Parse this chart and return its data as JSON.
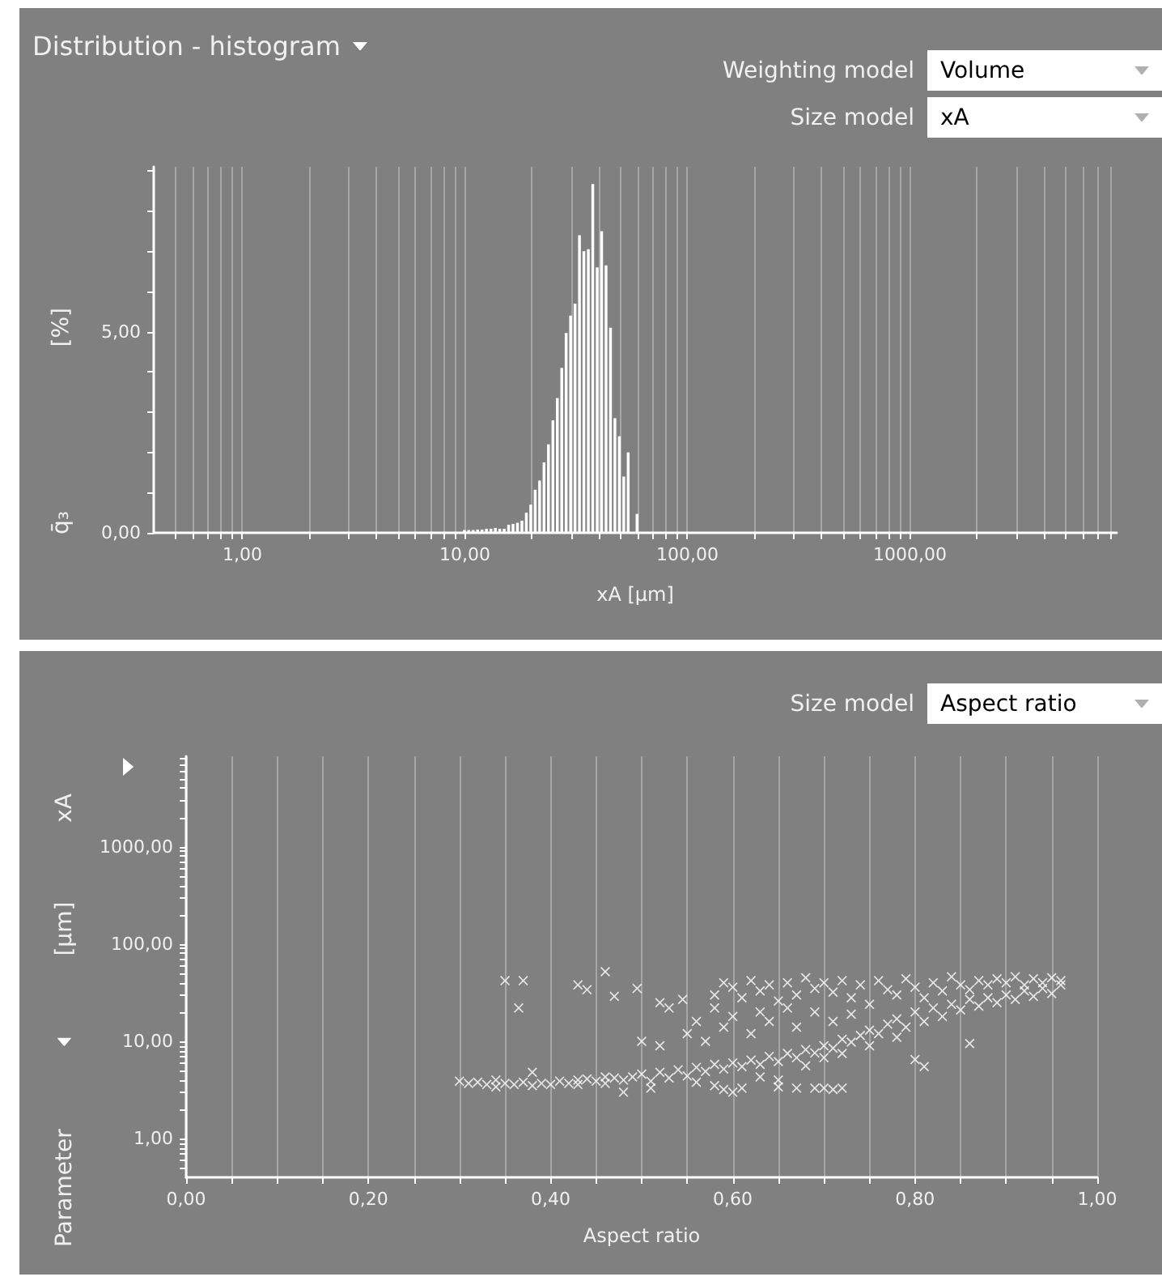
{
  "chart_data": [
    {
      "type": "histogram",
      "title": "Distribution - histogram",
      "xlabel": "xA [µm]",
      "ylabel": "q̄₃ [%]",
      "annotations": [
        "Weighting model",
        "Volume",
        "Size model",
        "xA"
      ],
      "log": "x",
      "grid": "x",
      "color": "#ffffff",
      "bins": [
        7.8,
        8.17,
        8.55,
        8.95,
        9.37,
        9.81,
        10.27,
        10.75,
        11.25,
        11.78,
        12.33,
        12.91,
        13.52,
        14.15,
        14.81,
        15.51,
        16.23,
        16.99,
        17.79,
        18.63,
        19.5,
        20.41,
        21.37,
        22.37,
        23.42,
        24.52,
        25.67,
        26.87,
        28.13,
        29.45,
        30.83,
        32.28,
        33.79,
        35.38,
        37.04,
        38.77,
        40.59,
        42.5,
        44.49,
        46.58,
        48.76,
        51.05,
        53.44,
        55.95,
        58.57,
        61.32
      ],
      "values": [
        null,
        null,
        null,
        null,
        null,
        0.07,
        0.07,
        0.07,
        0.08,
        0.08,
        0.1,
        0.1,
        0.12,
        0.1,
        0.1,
        0.2,
        0.22,
        0.25,
        0.3,
        0.5,
        0.7,
        1.07,
        1.3,
        1.75,
        2.2,
        2.8,
        3.35,
        4.1,
        4.97,
        5.4,
        5.7,
        7.4,
        7.0,
        7.05,
        8.67,
        6.6,
        7.5,
        6.65,
        5.1,
        2.85,
        2.4,
        1.4,
        2.0,
        0,
        0.47
      ],
      "xlim": [
        0.4,
        8500
      ],
      "xticks": [
        {
          "value": 0.5,
          "label": null
        },
        {
          "value": 0.6,
          "label": null
        },
        {
          "value": 0.7,
          "label": null
        },
        {
          "value": 0.8,
          "label": null
        },
        {
          "value": 0.9,
          "label": null
        },
        {
          "value": 1,
          "label": "1,00"
        },
        {
          "value": 2,
          "label": null
        },
        {
          "value": 3,
          "label": null
        },
        {
          "value": 4,
          "label": null
        },
        {
          "value": 5,
          "label": null
        },
        {
          "value": 6,
          "label": null
        },
        {
          "value": 7,
          "label": null
        },
        {
          "value": 8,
          "label": null
        },
        {
          "value": 9,
          "label": null
        },
        {
          "value": 10,
          "label": "10,00"
        },
        {
          "value": 20,
          "label": null
        },
        {
          "value": 30,
          "label": null
        },
        {
          "value": 40,
          "label": null
        },
        {
          "value": 50,
          "label": null
        },
        {
          "value": 60,
          "label": null
        },
        {
          "value": 70,
          "label": null
        },
        {
          "value": 80,
          "label": null
        },
        {
          "value": 90,
          "label": null
        },
        {
          "value": 100,
          "label": "100,00"
        },
        {
          "value": 200,
          "label": null
        },
        {
          "value": 300,
          "label": null
        },
        {
          "value": 400,
          "label": null
        },
        {
          "value": 500,
          "label": null
        },
        {
          "value": 600,
          "label": null
        },
        {
          "value": 700,
          "label": null
        },
        {
          "value": 800,
          "label": null
        },
        {
          "value": 900,
          "label": null
        },
        {
          "value": 1000,
          "label": "1000,00"
        },
        {
          "value": 2000,
          "label": null
        },
        {
          "value": 3000,
          "label": null
        },
        {
          "value": 4000,
          "label": null
        },
        {
          "value": 5000,
          "label": null
        },
        {
          "value": 6000,
          "label": null
        },
        {
          "value": 7000,
          "label": null
        },
        {
          "value": 8000,
          "label": null
        }
      ],
      "ylim": [
        0,
        9.1
      ],
      "yticks": [
        {
          "value": 0,
          "label": "0,00"
        },
        {
          "value": 1,
          "label": null
        },
        {
          "value": 2,
          "label": null
        },
        {
          "value": 3,
          "label": null
        },
        {
          "value": 4,
          "label": null
        },
        {
          "value": 5,
          "label": "5,00"
        },
        {
          "value": 6,
          "label": null
        },
        {
          "value": 7,
          "label": null
        },
        {
          "value": 8,
          "label": null
        },
        {
          "value": 9,
          "label": null
        }
      ]
    },
    {
      "type": "scatter",
      "xlabel": "Aspect ratio",
      "ylabel": "Parameter [µm] xA",
      "annotations": [
        "Size model",
        "Aspect ratio"
      ],
      "log": "y",
      "grid": "x",
      "marker": "cross",
      "series": [
        {
          "color": "#ffffff",
          "x": [
            0.3,
            0.31,
            0.32,
            0.33,
            0.34,
            0.34,
            0.35,
            0.36,
            0.37,
            0.38,
            0.38,
            0.39,
            0.4,
            0.41,
            0.42,
            0.43,
            0.43,
            0.44,
            0.45,
            0.46,
            0.46,
            0.47,
            0.48,
            0.48,
            0.49,
            0.5,
            0.51,
            0.51,
            0.52,
            0.53,
            0.54,
            0.55,
            0.56,
            0.56,
            0.57,
            0.58,
            0.58,
            0.59,
            0.59,
            0.6,
            0.6,
            0.61,
            0.61,
            0.62,
            0.63,
            0.63,
            0.64,
            0.65,
            0.65,
            0.66,
            0.67,
            0.68,
            0.68,
            0.69,
            0.7,
            0.7,
            0.71,
            0.72,
            0.72,
            0.73,
            0.65,
            0.67,
            0.69,
            0.7,
            0.71,
            0.72,
            0.74,
            0.75,
            0.75,
            0.76,
            0.77,
            0.78,
            0.78,
            0.79,
            0.8,
            0.8,
            0.81,
            0.81,
            0.82,
            0.83,
            0.84,
            0.85,
            0.86,
            0.86,
            0.87,
            0.88,
            0.89,
            0.9,
            0.91,
            0.92,
            0.93,
            0.94,
            0.95,
            0.96,
            0.58,
            0.59,
            0.6,
            0.61,
            0.62,
            0.63,
            0.64,
            0.65,
            0.66,
            0.67,
            0.68,
            0.69,
            0.7,
            0.71,
            0.72,
            0.73,
            0.74,
            0.75,
            0.76,
            0.77,
            0.78,
            0.79,
            0.8,
            0.81,
            0.82,
            0.83,
            0.84,
            0.85,
            0.86,
            0.87,
            0.88,
            0.89,
            0.9,
            0.91,
            0.92,
            0.93,
            0.94,
            0.95,
            0.96,
            0.55,
            0.56,
            0.57,
            0.58,
            0.59,
            0.6,
            0.62,
            0.63,
            0.64,
            0.66,
            0.67,
            0.69,
            0.71,
            0.73,
            0.35,
            0.37,
            0.365,
            0.43,
            0.44,
            0.46,
            0.47,
            0.495,
            0.52,
            0.53,
            0.545,
            0.5,
            0.52
          ],
          "values": [
            3.9,
            3.7,
            3.8,
            3.6,
            3.4,
            4.0,
            3.7,
            3.6,
            3.8,
            3.5,
            4.8,
            3.7,
            3.6,
            3.9,
            3.7,
            4.0,
            3.6,
            4.1,
            3.9,
            4.3,
            3.7,
            4.2,
            4.0,
            3.0,
            4.3,
            4.6,
            3.9,
            3.3,
            4.8,
            4.2,
            5.1,
            4.4,
            5.4,
            3.8,
            4.9,
            5.8,
            3.5,
            5.2,
            3.2,
            6.0,
            3.0,
            5.5,
            3.3,
            6.4,
            5.8,
            4.3,
            7.0,
            6.2,
            4.0,
            7.5,
            6.8,
            8.2,
            5.6,
            7.6,
            9.0,
            6.8,
            8.5,
            10.5,
            7.5,
            9.8,
            3.4,
            3.3,
            3.3,
            3.3,
            3.2,
            3.3,
            11.5,
            9.0,
            13,
            12,
            15,
            11,
            17,
            14,
            20,
            6.5,
            16,
            5.5,
            22,
            18,
            24,
            21,
            27,
            9.5,
            23,
            28,
            25,
            30,
            27,
            33,
            29,
            35,
            31,
            38,
            30,
            40,
            36,
            28,
            42,
            33,
            38,
            26,
            40,
            30,
            45,
            35,
            40,
            32,
            42,
            28,
            38,
            24,
            42,
            34,
            30,
            44,
            36,
            28,
            40,
            33,
            46,
            38,
            34,
            42,
            38,
            44,
            40,
            46,
            38,
            44,
            40,
            45,
            42,
            12,
            16,
            10,
            22,
            14,
            18,
            12,
            20,
            16,
            22,
            14,
            20,
            16,
            19,
            42,
            42,
            22,
            38,
            34,
            52,
            29,
            35,
            25,
            22,
            27,
            10,
            9
          ]
        }
      ],
      "xlim": [
        0,
        1
      ],
      "xticks": [
        {
          "value": 0,
          "label": "0,00"
        },
        {
          "value": 0.05,
          "label": null
        },
        {
          "value": 0.1,
          "label": null
        },
        {
          "value": 0.15,
          "label": null
        },
        {
          "value": 0.2,
          "label": "0,20"
        },
        {
          "value": 0.25,
          "label": null
        },
        {
          "value": 0.3,
          "label": null
        },
        {
          "value": 0.35,
          "label": null
        },
        {
          "value": 0.4,
          "label": "0,40"
        },
        {
          "value": 0.45,
          "label": null
        },
        {
          "value": 0.5,
          "label": null
        },
        {
          "value": 0.55,
          "label": null
        },
        {
          "value": 0.6,
          "label": "0,60"
        },
        {
          "value": 0.65,
          "label": null
        },
        {
          "value": 0.7,
          "label": null
        },
        {
          "value": 0.75,
          "label": null
        },
        {
          "value": 0.8,
          "label": "0,80"
        },
        {
          "value": 0.85,
          "label": null
        },
        {
          "value": 0.9,
          "label": null
        },
        {
          "value": 0.95,
          "label": null
        },
        {
          "value": 1,
          "label": "1,00"
        }
      ],
      "ylim": [
        0.4,
        8500
      ],
      "yticks": [
        {
          "value": 0.5,
          "label": null
        },
        {
          "value": 0.6,
          "label": null
        },
        {
          "value": 0.7,
          "label": null
        },
        {
          "value": 0.8,
          "label": null
        },
        {
          "value": 0.9,
          "label": null
        },
        {
          "value": 1,
          "label": "1,00"
        },
        {
          "value": 2,
          "label": null
        },
        {
          "value": 3,
          "label": null
        },
        {
          "value": 4,
          "label": null
        },
        {
          "value": 5,
          "label": null
        },
        {
          "value": 6,
          "label": null
        },
        {
          "value": 7,
          "label": null
        },
        {
          "value": 8,
          "label": null
        },
        {
          "value": 9,
          "label": null
        },
        {
          "value": 10,
          "label": "10,00"
        },
        {
          "value": 20,
          "label": null
        },
        {
          "value": 30,
          "label": null
        },
        {
          "value": 40,
          "label": null
        },
        {
          "value": 50,
          "label": null
        },
        {
          "value": 60,
          "label": null
        },
        {
          "value": 70,
          "label": null
        },
        {
          "value": 80,
          "label": null
        },
        {
          "value": 90,
          "label": null
        },
        {
          "value": 100,
          "label": "100,00"
        },
        {
          "value": 200,
          "label": null
        },
        {
          "value": 300,
          "label": null
        },
        {
          "value": 400,
          "label": null
        },
        {
          "value": 500,
          "label": null
        },
        {
          "value": 600,
          "label": null
        },
        {
          "value": 700,
          "label": null
        },
        {
          "value": 800,
          "label": null
        },
        {
          "value": 900,
          "label": null
        },
        {
          "value": 1000,
          "label": "1000,00"
        },
        {
          "value": 2000,
          "label": null
        },
        {
          "value": 3000,
          "label": null
        },
        {
          "value": 4000,
          "label": null
        },
        {
          "value": 5000,
          "label": null
        },
        {
          "value": 6000,
          "label": null
        },
        {
          "value": 7000,
          "label": null
        },
        {
          "value": 8000,
          "label": null
        }
      ]
    }
  ]
}
